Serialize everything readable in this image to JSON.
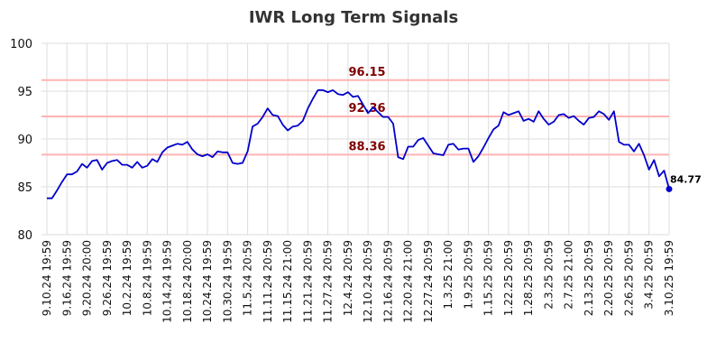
{
  "chart_data": {
    "type": "line",
    "title": "IWR Long Term Signals",
    "xlabel": "",
    "ylabel": "",
    "ylim": [
      80,
      100
    ],
    "yticks": [
      80,
      85,
      90,
      95,
      100
    ],
    "grid": true,
    "colors": {
      "line": "#0000cc",
      "level_line": "#ffb3b3",
      "level_label": "#800000",
      "grid": "#dddddd"
    },
    "x_tick_labels": [
      "9.10.24 19:59",
      "9.16.24 19:59",
      "9.20.24 20:00",
      "9.26.24 19:59",
      "10.2.24 19:59",
      "10.8.24 19:59",
      "10.14.24 19:59",
      "10.18.24 20:00",
      "10.24.24 19:59",
      "10.30.24 19:59",
      "11.5.24 20:59",
      "11.11.24 20:59",
      "11.15.24 21:00",
      "11.21.24 20:59",
      "11.27.24 20:59",
      "12.4.24 20:59",
      "12.10.24 20:59",
      "12.16.24 20:59",
      "12.20.24 21:00",
      "12.27.24 20:59",
      "1.3.25 21:00",
      "1.9.25 20:59",
      "1.15.25 20:59",
      "1.22.25 20:59",
      "1.28.25 20:59",
      "2.3.25 20:59",
      "2.7.25 21:00",
      "2.13.25 20:59",
      "2.20.25 20:59",
      "2.26.25 20:59",
      "3.4.25 20:59",
      "3.10.25 19:59"
    ],
    "levels": [
      96.15,
      92.36,
      88.36
    ],
    "level_labels": [
      "96.15",
      "92.36",
      "88.36"
    ],
    "series": [
      {
        "values": [
          83.8,
          83.8,
          84.6,
          85.5,
          86.3,
          86.3,
          86.6,
          87.4,
          87.0,
          87.7,
          87.8,
          86.8,
          87.5,
          87.7,
          87.8,
          87.3,
          87.3,
          87.0,
          87.6,
          87.0,
          87.2,
          87.9,
          87.6,
          88.6,
          89.1,
          89.3,
          89.5,
          89.4,
          89.7,
          88.9,
          88.4,
          88.2,
          88.4,
          88.1,
          88.7,
          88.6,
          88.6,
          87.5,
          87.4,
          87.5,
          88.7,
          91.3,
          91.6,
          92.3,
          93.2,
          92.5,
          92.4,
          91.5,
          90.9,
          91.3,
          91.4,
          91.9,
          93.2,
          94.2,
          95.1,
          95.1,
          94.9,
          95.1,
          94.7,
          94.6,
          94.9,
          94.4,
          94.5,
          93.6,
          92.7,
          93.3,
          92.8,
          92.3,
          92.3,
          91.6,
          88.1,
          87.9,
          89.2,
          89.2,
          89.9,
          90.1,
          89.3,
          88.5,
          88.4,
          88.3,
          89.4,
          89.5,
          88.9,
          89.0,
          89.0,
          87.6,
          88.2,
          89.1,
          90.1,
          91.0,
          91.4,
          92.8,
          92.5,
          92.7,
          92.9,
          91.9,
          92.1,
          91.8,
          92.9,
          92.1,
          91.5,
          91.8,
          92.5,
          92.6,
          92.2,
          92.4,
          91.9,
          91.5,
          92.2,
          92.3,
          92.9,
          92.6,
          92.0,
          92.9,
          89.7,
          89.4,
          89.4,
          88.7,
          89.5,
          88.3,
          86.8,
          87.8,
          86.1,
          86.7,
          84.77
        ]
      }
    ],
    "last_value_label": "84.77"
  }
}
